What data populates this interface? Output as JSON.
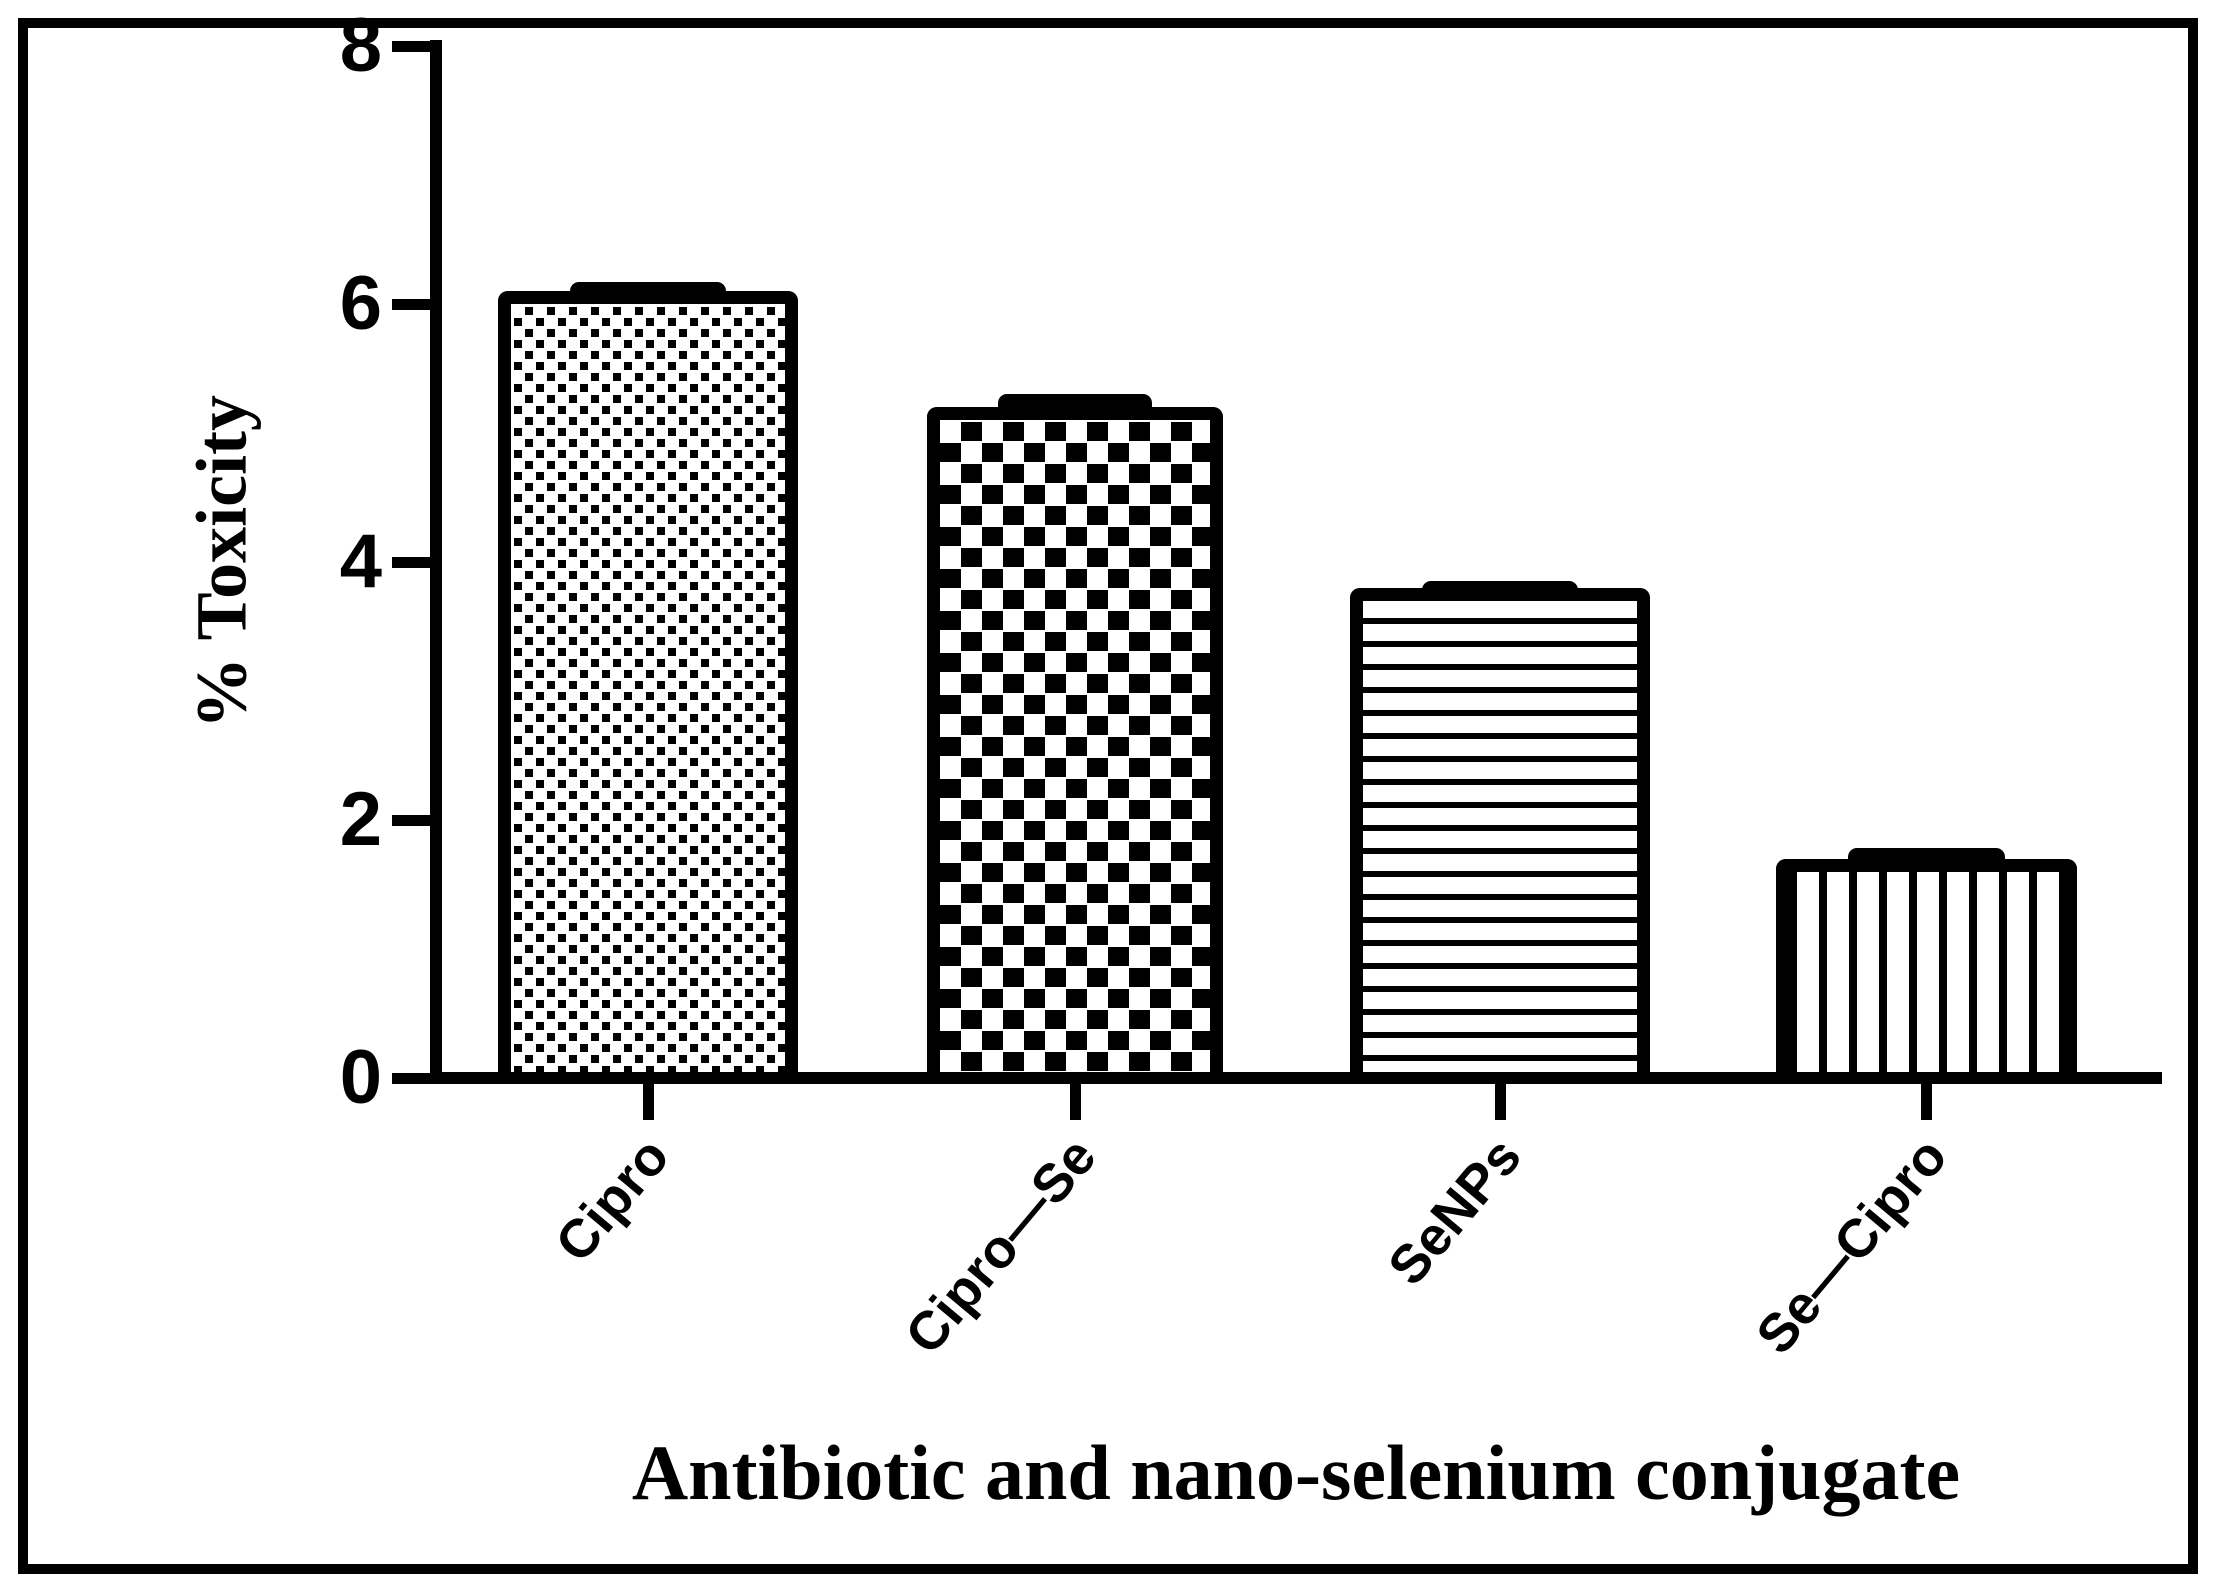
{
  "figure": {
    "background_color": "#ffffff",
    "ink_color": "#000000",
    "frame": "thick black rectangular border"
  },
  "chart_data": {
    "type": "bar",
    "title": "",
    "categories": [
      "Cipro",
      "Cipro—Se",
      "SeNPs",
      "Se—Cipro"
    ],
    "values": [
      6.1,
      5.2,
      3.8,
      1.7
    ],
    "errors": [
      0.07,
      0.1,
      0.05,
      0.08
    ],
    "bar_patterns": [
      "small-checkerboard",
      "large-checkerboard",
      "horizontal-stripes",
      "vertical-stripes"
    ],
    "bar_fill": "black pattern on white",
    "xlabel": "Antibiotic and nano-selenium conjugate",
    "ylabel": "% Toxicity",
    "ylim": [
      0,
      8
    ],
    "y_ticks": [
      0,
      2,
      4,
      6,
      8
    ],
    "grid": false,
    "legend": false,
    "error_bars": true
  }
}
